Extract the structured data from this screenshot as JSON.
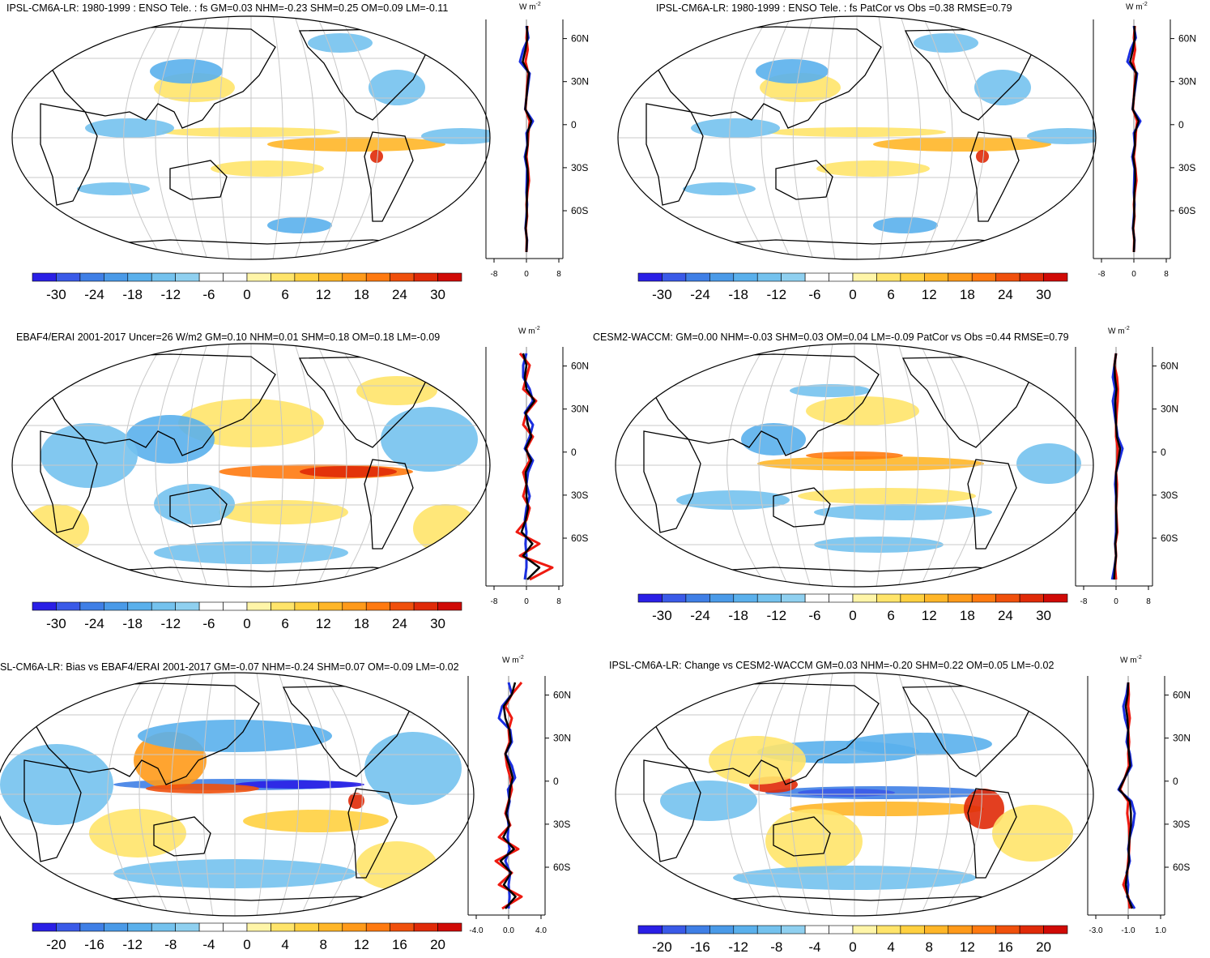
{
  "units_label": "W m",
  "units_exponent": "-2",
  "colors": {
    "scale": [
      "#2a1fe6",
      "#3a5ae8",
      "#3f7fe6",
      "#4a9ae8",
      "#5ab0ec",
      "#74c2ee",
      "#8fd0f0",
      "#ffffff",
      "#ffffff",
      "#fff5a8",
      "#ffe46a",
      "#ffd040",
      "#ffb628",
      "#ff9a1a",
      "#ff7a10",
      "#f0500c",
      "#e02a08",
      "#d00a06"
    ],
    "north_hemisphere_line": "#1a2ee0",
    "south_hemisphere_line": "#ee1a10",
    "global_line": "#000000",
    "land_outline": "#000000",
    "graticule": "#c8c8c8"
  },
  "panels": [
    {
      "id": "p1",
      "title": "IPSL-CM6A-LR: 1980-1999 : ENSO Tele. : fs GM=0.03 NHM=-0.23 SHM=0.25 OM=0.09 LM=-0.11",
      "lat_labels": [
        "60N",
        "30N",
        "0",
        "30S",
        "60S"
      ],
      "zonal_ticks": [
        "-8",
        "0",
        "8"
      ],
      "colorbar_ticks": [
        "-30",
        "-24",
        "-18",
        "-12",
        "-6",
        "0",
        "6",
        "12",
        "18",
        "24",
        "30"
      ]
    },
    {
      "id": "p2",
      "title": "IPSL-CM6A-LR: 1980-1999 : ENSO Tele. : fs PatCor vs Obs =0.38 RMSE=0.79",
      "lat_labels": [
        "60N",
        "30N",
        "0",
        "30S",
        "60S"
      ],
      "zonal_ticks": [
        "-8",
        "0",
        "8"
      ],
      "colorbar_ticks": [
        "-30",
        "-24",
        "-18",
        "-12",
        "-6",
        "0",
        "6",
        "12",
        "18",
        "24",
        "30"
      ]
    },
    {
      "id": "p3",
      "title": "EBAF4/ERAI 2001-2017 Uncer=26 W/m2 GM=0.10 NHM=0.01 SHM=0.18 OM=0.18 LM=-0.09",
      "lat_labels": [
        "60N",
        "30N",
        "0",
        "30S",
        "60S"
      ],
      "zonal_ticks": [
        "-8",
        "0",
        "8"
      ],
      "colorbar_ticks": [
        "-30",
        "-24",
        "-18",
        "-12",
        "-6",
        "0",
        "6",
        "12",
        "18",
        "24",
        "30"
      ]
    },
    {
      "id": "p4",
      "title": "CESM2-WACCM: GM=0.00 NHM=-0.03 SHM=0.03 OM=0.04 LM=-0.09 PatCor vs Obs =0.44 RMSE=0.79",
      "lat_labels": [
        "60N",
        "30N",
        "0",
        "30S",
        "60S"
      ],
      "zonal_ticks": [
        "-8",
        "0",
        "8"
      ],
      "colorbar_ticks": [
        "-30",
        "-24",
        "-18",
        "-12",
        "-6",
        "0",
        "6",
        "12",
        "18",
        "24",
        "30"
      ]
    },
    {
      "id": "p5",
      "title": "SL-CM6A-LR: Bias vs EBAF4/ERAI 2001-2017 GM=-0.07 NHM=-0.24 SHM=0.07 OM=-0.09 LM=-0.02",
      "lat_labels": [
        "60N",
        "30N",
        "0",
        "30S",
        "60S"
      ],
      "zonal_ticks": [
        "-4.0",
        "0.0",
        "4.0"
      ],
      "colorbar_ticks": [
        "-20",
        "-16",
        "-12",
        "-8",
        "-4",
        "0",
        "4",
        "8",
        "12",
        "16",
        "20"
      ]
    },
    {
      "id": "p6",
      "title": "IPSL-CM6A-LR: Change vs CESM2-WACCM GM=0.03 NHM=-0.20 SHM=0.22 OM=0.05 LM=-0.02",
      "lat_labels": [
        "60N",
        "30N",
        "0",
        "30S",
        "60S"
      ],
      "zonal_ticks": [
        "-3.0",
        "-1.0",
        "1.0"
      ],
      "colorbar_ticks": [
        "-20",
        "-16",
        "-12",
        "-8",
        "-4",
        "0",
        "4",
        "8",
        "12",
        "16",
        "20"
      ]
    }
  ]
}
